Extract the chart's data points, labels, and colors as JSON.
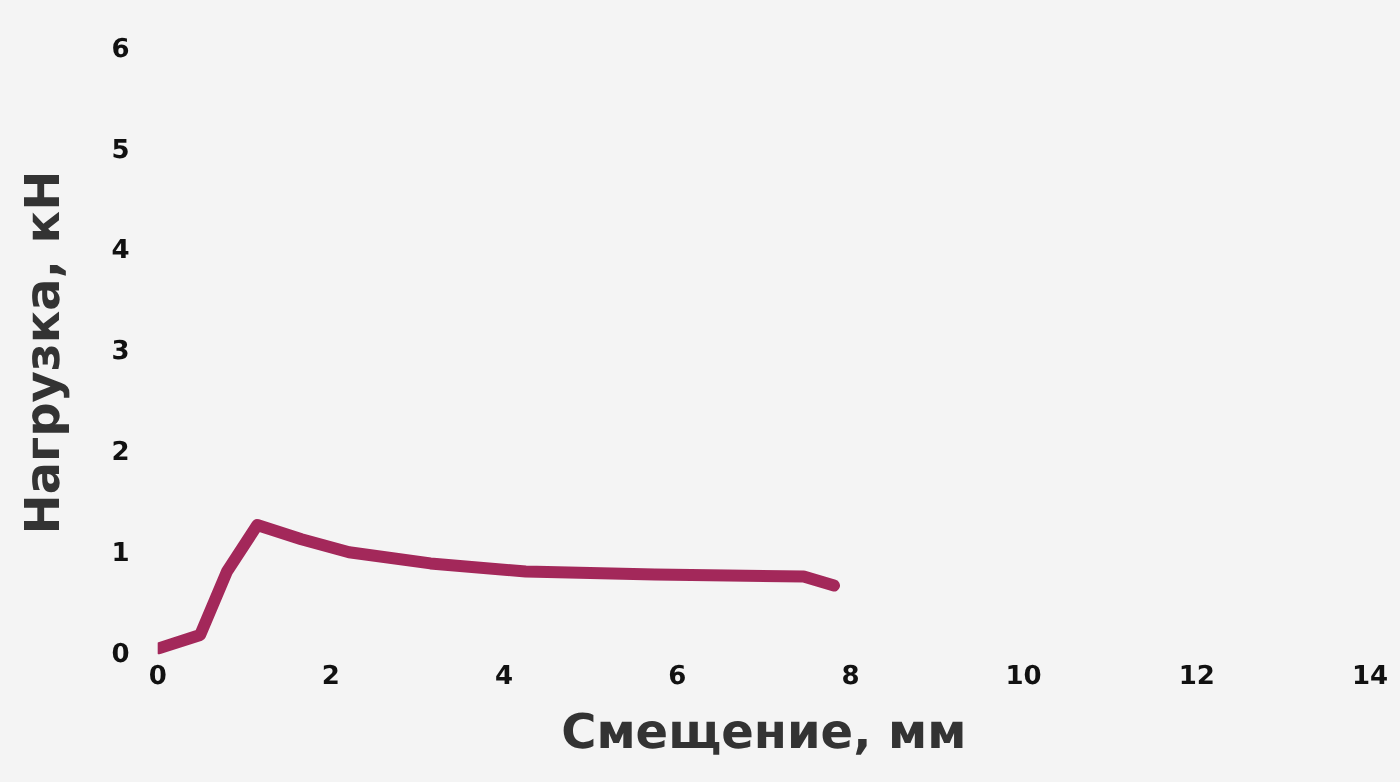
{
  "chart_data": {
    "type": "line",
    "xlabel": "Смещение, мм",
    "ylabel": "Нагрузка, кН",
    "x": [
      0.02,
      0.49,
      0.8,
      1.15,
      1.66,
      2.21,
      3.15,
      4.25,
      5.74,
      7.46,
      7.81
    ],
    "series": [
      {
        "color": "#a3285a",
        "values": [
          0.07,
          0.2,
          0.83,
          1.29,
          1.15,
          1.02,
          0.91,
          0.83,
          0.8,
          0.78,
          0.69
        ]
      }
    ],
    "xlim": [
      0,
      14
    ],
    "xticks": [
      0,
      2,
      4,
      6,
      8,
      10,
      12,
      14
    ],
    "ylim": [
      0,
      6
    ],
    "yticks": [
      0,
      1,
      2,
      3,
      4,
      5,
      6
    ],
    "grid": false,
    "legend": false,
    "marker": "none",
    "line_style": "solid"
  }
}
